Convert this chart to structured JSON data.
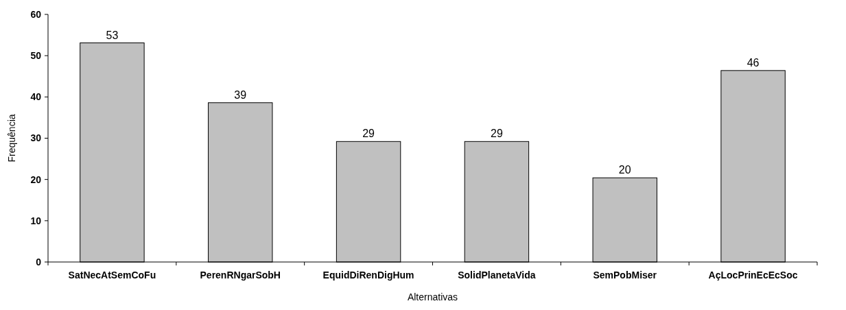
{
  "chart_data": {
    "type": "bar",
    "xlabel": "Alternativas",
    "ylabel": "Frequência",
    "categories": [
      "SatNecAtSemCoFu",
      "PerenRNgarSobH",
      "EquidDiRenDigHum",
      "SolidPlanetaVida",
      "SemPobMiser",
      "AçLocPrinEcEcSoc"
    ],
    "values": [
      53.1,
      38.6,
      29.2,
      29.2,
      20.4,
      46.4
    ],
    "value_labels": [
      "53",
      "39",
      "29",
      "29",
      "20",
      "46"
    ],
    "color": "#c0c0c0",
    "ylim": [
      0,
      60
    ],
    "yticks": [
      0,
      10,
      20,
      30,
      40,
      50,
      60
    ],
    "grid": false
  }
}
